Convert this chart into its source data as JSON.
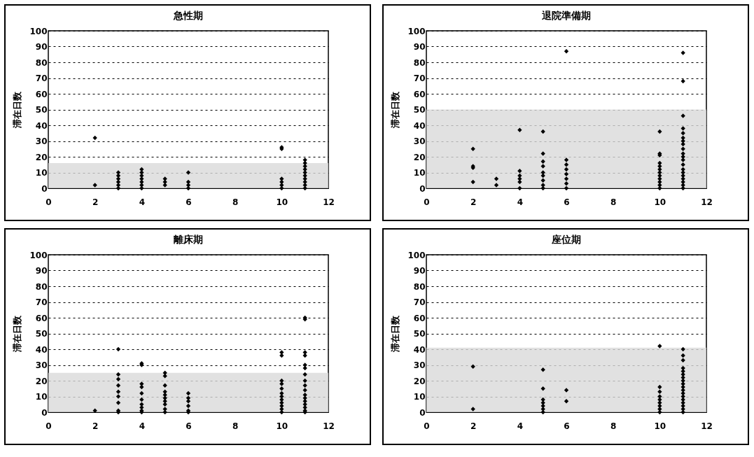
{
  "chart_data": [
    {
      "type": "scatter",
      "title": "急性期",
      "ylabel": "滞在日数",
      "xlim": [
        0,
        12
      ],
      "xticks": [
        0,
        2,
        4,
        6,
        8,
        10,
        12
      ],
      "ylim": [
        0,
        100
      ],
      "yticks": [
        0,
        10,
        20,
        30,
        40,
        50,
        60,
        70,
        80,
        90,
        100
      ],
      "grid": "y",
      "marker": "diamond",
      "bands": [
        {
          "axis": "y",
          "from": 0,
          "to": 16,
          "color": "#d9d9d9"
        }
      ],
      "series": [
        {
          "color": "#000000",
          "x": [
            2,
            2,
            3,
            3,
            3,
            3,
            3,
            3,
            4,
            4,
            4,
            4,
            4,
            4,
            4,
            5,
            5,
            5,
            6,
            6,
            6,
            6,
            10,
            10,
            10,
            10,
            10,
            10,
            11,
            11,
            11,
            11,
            11,
            11,
            11,
            11,
            11,
            11
          ],
          "values": [
            32,
            2,
            0,
            2,
            4,
            6,
            8,
            10,
            0,
            2,
            4,
            6,
            8,
            10,
            12,
            2,
            4,
            6,
            0,
            2,
            4,
            10,
            25,
            26,
            0,
            2,
            4,
            6,
            0,
            2,
            4,
            6,
            8,
            10,
            12,
            14,
            16,
            18
          ]
        }
      ]
    },
    {
      "type": "scatter",
      "title": "退院準備期",
      "ylabel": "滞在日数",
      "xlim": [
        0,
        12
      ],
      "xticks": [
        0,
        2,
        4,
        6,
        8,
        10,
        12
      ],
      "ylim": [
        0,
        100
      ],
      "yticks": [
        0,
        10,
        20,
        30,
        40,
        50,
        60,
        70,
        80,
        90,
        100
      ],
      "grid": "y",
      "marker": "diamond",
      "bands": [
        {
          "axis": "y",
          "from": 0,
          "to": 50,
          "color": "#d9d9d9"
        }
      ],
      "series": [
        {
          "color": "#000000",
          "x": [
            2,
            2,
            2,
            2,
            3,
            3,
            4,
            4,
            4,
            4,
            4,
            4,
            5,
            5,
            5,
            5,
            5,
            5,
            5,
            5,
            5,
            6,
            6,
            6,
            6,
            6,
            6,
            6,
            6,
            10,
            10,
            10,
            10,
            10,
            10,
            10,
            10,
            10,
            10,
            10,
            10,
            11,
            11,
            11,
            11,
            11,
            11,
            11,
            11,
            11,
            11,
            11,
            11,
            11,
            11,
            11,
            11,
            11,
            11,
            11,
            11
          ],
          "values": [
            25,
            14,
            13,
            4,
            6,
            2,
            37,
            11,
            8,
            6,
            4,
            0,
            36,
            22,
            17,
            14,
            10,
            8,
            5,
            2,
            0,
            87,
            18,
            15,
            12,
            9,
            6,
            3,
            0,
            36,
            22,
            21,
            16,
            14,
            12,
            10,
            8,
            6,
            4,
            2,
            0,
            86,
            68,
            46,
            38,
            35,
            32,
            30,
            28,
            25,
            22,
            20,
            18,
            15,
            12,
            10,
            8,
            6,
            4,
            2,
            0
          ]
        }
      ]
    },
    {
      "type": "scatter",
      "title": "離床期",
      "ylabel": "滞在日数",
      "xlim": [
        0,
        12
      ],
      "xticks": [
        0,
        2,
        4,
        6,
        8,
        10,
        12
      ],
      "ylim": [
        0,
        100
      ],
      "yticks": [
        0,
        10,
        20,
        30,
        40,
        50,
        60,
        70,
        80,
        90,
        100
      ],
      "grid": "y",
      "marker": "diamond",
      "bands": [
        {
          "axis": "y",
          "from": 0,
          "to": 25,
          "color": "#d9d9d9"
        }
      ],
      "series": [
        {
          "color": "#000000",
          "x": [
            2,
            3,
            3,
            3,
            3,
            3,
            3,
            3,
            3,
            3,
            4,
            4,
            4,
            4,
            4,
            4,
            4,
            4,
            4,
            4,
            5,
            5,
            5,
            5,
            5,
            5,
            5,
            5,
            5,
            5,
            6,
            6,
            6,
            6,
            6,
            6,
            10,
            10,
            10,
            10,
            10,
            10,
            10,
            10,
            10,
            10,
            10,
            10,
            11,
            11,
            11,
            11,
            11,
            11,
            11,
            11,
            11,
            11,
            11,
            11,
            11,
            11,
            11,
            11,
            11
          ],
          "values": [
            1,
            40,
            24,
            21,
            17,
            13,
            10,
            6,
            1,
            0,
            31,
            30,
            18,
            16,
            12,
            8,
            5,
            3,
            1,
            0,
            25,
            23,
            17,
            13,
            11,
            9,
            7,
            5,
            2,
            0,
            12,
            9,
            7,
            4,
            1,
            0,
            38,
            36,
            20,
            18,
            15,
            12,
            10,
            8,
            6,
            4,
            2,
            0,
            60,
            59,
            38,
            36,
            30,
            28,
            24,
            20,
            17,
            14,
            11,
            9,
            7,
            5,
            3,
            1,
            0
          ]
        }
      ]
    },
    {
      "type": "scatter",
      "title": "座位期",
      "ylabel": "滞在日数",
      "xlim": [
        0,
        12
      ],
      "xticks": [
        0,
        2,
        4,
        6,
        8,
        10,
        12
      ],
      "ylim": [
        0,
        100
      ],
      "yticks": [
        0,
        10,
        20,
        30,
        40,
        50,
        60,
        70,
        80,
        90,
        100
      ],
      "grid": "y",
      "marker": "diamond",
      "bands": [
        {
          "axis": "y",
          "from": 0,
          "to": 41,
          "color": "#d9d9d9"
        }
      ],
      "series": [
        {
          "color": "#000000",
          "x": [
            2,
            2,
            5,
            5,
            5,
            5,
            5,
            5,
            5,
            6,
            6,
            10,
            10,
            10,
            10,
            10,
            10,
            10,
            10,
            10,
            11,
            11,
            11,
            11,
            11,
            11,
            11,
            11,
            11,
            11,
            11,
            11,
            11,
            11,
            11,
            11,
            11,
            11
          ],
          "values": [
            29,
            2,
            27,
            15,
            8,
            6,
            4,
            2,
            0,
            14,
            7,
            42,
            16,
            13,
            10,
            8,
            6,
            4,
            2,
            0,
            40,
            36,
            33,
            28,
            26,
            24,
            22,
            20,
            18,
            16,
            14,
            12,
            10,
            8,
            6,
            4,
            2,
            0
          ]
        }
      ]
    }
  ]
}
